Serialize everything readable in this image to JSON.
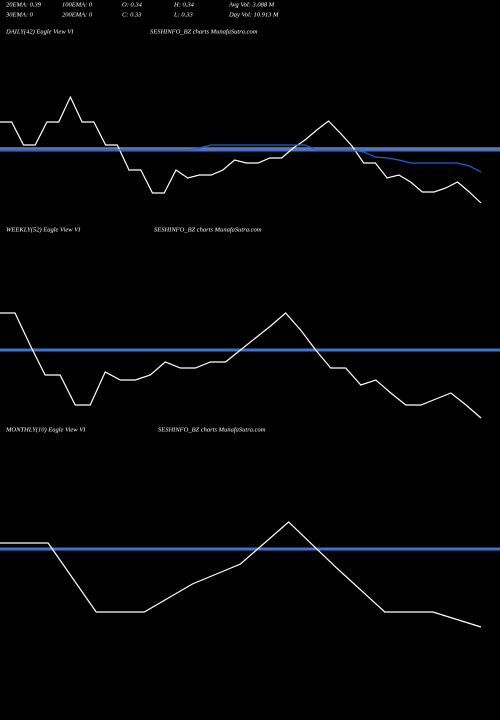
{
  "header": {
    "rows": [
      [
        "20EMA: 0.39",
        "100EMA: 0",
        "O: 0.34",
        "H: 0.34",
        "Avg Vol: 3.088  M"
      ],
      [
        "30EMA: 0",
        "200EMA: 0",
        "C: 0.33",
        "L: 0.33",
        "Day Vol: 10.913  M"
      ]
    ]
  },
  "chart_data": [
    {
      "type": "line",
      "title": "DAILY(42) Eagle  View  VI",
      "subtitle": "SESHINFO_BZ charts MunafaSutra.com",
      "ylim": [
        0,
        185
      ],
      "levels": [
        {
          "value": 77,
          "color": "#808080"
        },
        {
          "value": 75,
          "color": "#3d74d6"
        }
      ],
      "series": [
        {
          "color": "#ffffff",
          "values": [
            103,
            103,
            80,
            80,
            103,
            103,
            128,
            103,
            103,
            80,
            80,
            55,
            55,
            32,
            32,
            55,
            47,
            50,
            50,
            55,
            65,
            62,
            62,
            67,
            67,
            77,
            85,
            95,
            104,
            92,
            79,
            62,
            62,
            47,
            50,
            43,
            33,
            33,
            37,
            43,
            33,
            22
          ]
        },
        {
          "color": "#1f5fd8",
          "values": [
            75,
            75,
            75,
            75,
            75,
            75,
            75,
            75,
            75,
            75,
            75,
            75,
            75,
            75,
            75,
            75,
            75,
            77,
            80,
            80,
            80,
            80,
            80,
            80,
            80,
            80,
            80,
            75,
            75,
            75,
            75,
            73,
            68,
            67,
            65,
            62,
            62,
            62,
            62,
            62,
            59,
            53
          ]
        }
      ]
    },
    {
      "type": "line",
      "title": "WEEKLY(52) Eagle  View  VI",
      "subtitle": "SESHINFO_BZ charts MunafaSutra.com",
      "ylim": [
        0,
        185
      ],
      "levels": [
        {
          "value": 75,
          "color": "#3d74d6"
        }
      ],
      "series": [
        {
          "color": "#ffffff",
          "values": [
            112,
            112,
            80,
            50,
            50,
            20,
            20,
            53,
            45,
            45,
            50,
            63,
            57,
            57,
            63,
            63,
            75,
            87,
            99,
            112,
            95,
            75,
            57,
            57,
            40,
            45,
            32,
            20,
            20,
            26,
            32,
            20,
            7
          ]
        }
      ]
    },
    {
      "type": "line",
      "title": "MONTHLY(10) Eagle  View  VI",
      "subtitle": "SESHINFO_BZ charts MunafaSutra.com",
      "ylim": [
        0,
        200
      ],
      "levels": [
        {
          "value": 91,
          "color": "#3d74d6"
        }
      ],
      "series": [
        {
          "color": "#ffffff",
          "values": [
            97,
            97,
            28,
            28,
            56,
            76,
            118,
            72,
            28,
            28,
            13
          ]
        }
      ]
    }
  ]
}
